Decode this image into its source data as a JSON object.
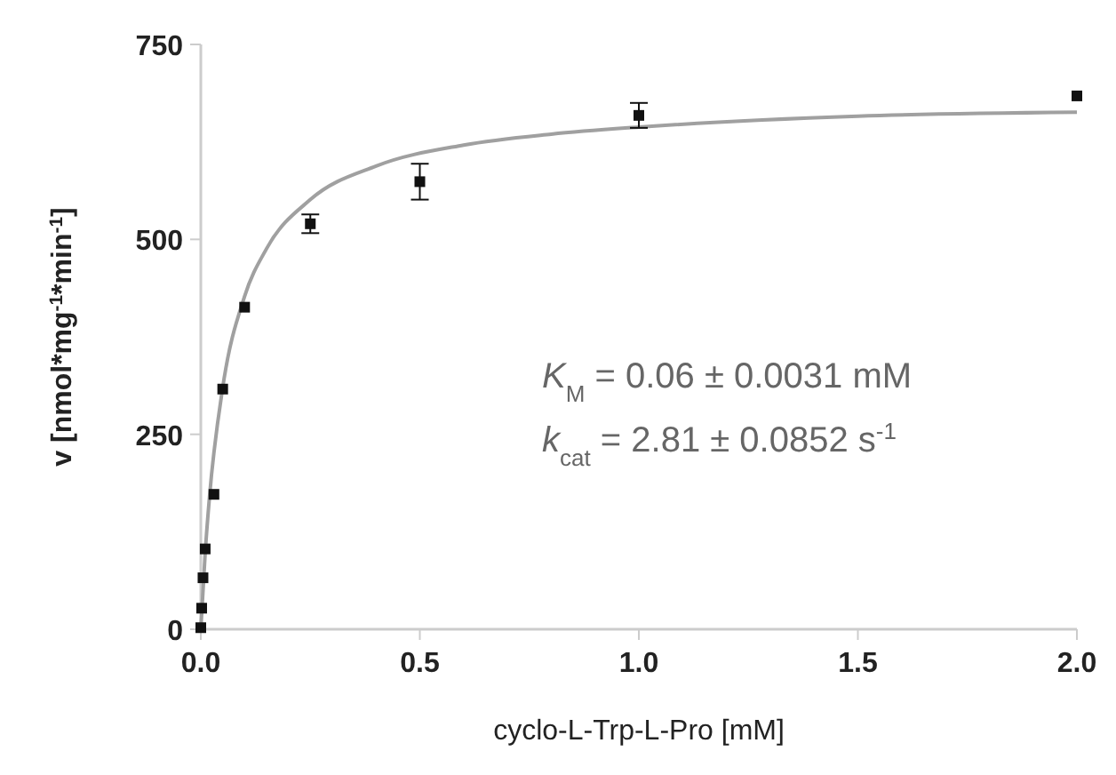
{
  "chart_data": {
    "type": "scatter",
    "xlabel": "cyclo-L-Trp-L-Pro [mM]",
    "ylabel": "v [nmol*mg$^{-1}$*min$^{-1}$]",
    "xlim": [
      0,
      2
    ],
    "xticks": [
      {
        "value": 0,
        "label": "0.0"
      },
      0.5,
      {
        "value": 1,
        "label": "1.0"
      },
      1.5,
      {
        "value": 2,
        "label": "2.0"
      }
    ],
    "ylim": [
      0,
      750
    ],
    "yticks": [
      0,
      250,
      500,
      750
    ],
    "grid": false,
    "marker": "square",
    "annotations": [
      "K$_{M}$ = 0.06 ± 0.0031 mM",
      "k$_{cat}$ = 2.81  ± 0.0852 s$^{-1}$"
    ],
    "series": [
      {
        "color": "#111111",
        "x": [
          0,
          0.002,
          0.005,
          0.01,
          0.03,
          0.05,
          0.1,
          0.25,
          0.5,
          1,
          2
        ],
        "values": [
          2,
          27,
          66,
          103,
          173,
          308,
          413,
          520,
          574,
          659,
          684
        ],
        "errors": [
          null,
          null,
          null,
          null,
          null,
          null,
          null,
          12,
          23,
          16,
          null
        ]
      },
      {
        "type": "line",
        "color": "#a0a0a0",
        "marker": "none",
        "x": [
          0,
          0.01,
          0.02,
          0.05,
          0.1,
          0.15,
          0.25,
          0.4,
          0.6,
          0.8,
          1,
          1.5,
          2
        ],
        "values": [
          0,
          98,
          171,
          310,
          427,
          488,
          551,
          594,
          621,
          635,
          644,
          658,
          663
        ]
      }
    ]
  }
}
